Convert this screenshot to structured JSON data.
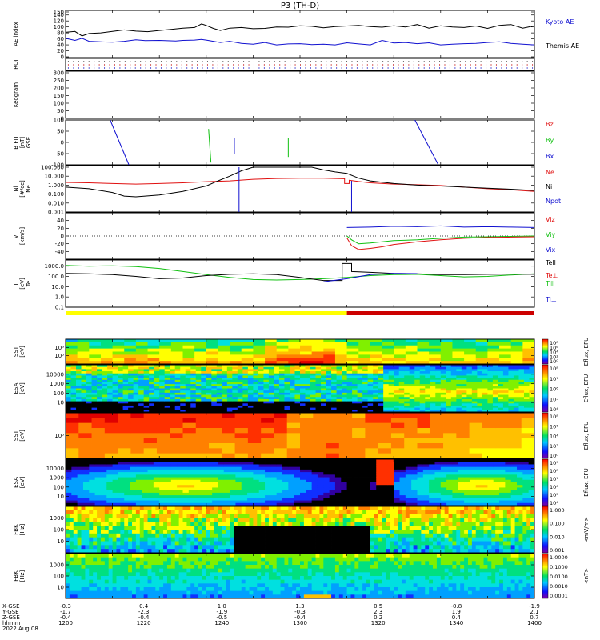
{
  "title": "P3 (TH-D)",
  "colors": {
    "black": "#000000",
    "red": "#e01010",
    "green": "#10c010",
    "blue": "#1010d0",
    "yellow_bar": "#ffff00",
    "mode_bar_red": "#cc0000"
  },
  "chart_data": [
    {
      "name": "ae-index",
      "type": "line",
      "ylabel": "AE index",
      "ylim": [
        0,
        150
      ],
      "yticks": [
        "150",
        "140",
        "120",
        "100",
        "80",
        "60",
        "40",
        "20",
        "0"
      ],
      "series": [
        {
          "name": "Kyoto AE",
          "color": "#1010d0",
          "x": [
            1200,
            1204,
            1207,
            1210,
            1215,
            1220,
            1225,
            1230,
            1234,
            1240,
            1247,
            1250,
            1255,
            1258,
            1260,
            1263,
            1266,
            1270,
            1275,
            1280,
            1285,
            1290,
            1295,
            1300,
            1305,
            1310,
            1315,
            1320,
            1325,
            1330,
            1335,
            1340,
            1345,
            1350,
            1355,
            1360,
            1365,
            1370,
            1375,
            1380,
            1385,
            1390,
            1395,
            1400
          ],
          "values": [
            62,
            55,
            62,
            52,
            50,
            49,
            52,
            57,
            54,
            55,
            53,
            55,
            56,
            58,
            56,
            52,
            48,
            52,
            45,
            42,
            48,
            40,
            43,
            44,
            41,
            42,
            40,
            47,
            43,
            40,
            55,
            46,
            48,
            44,
            47,
            40,
            42,
            44,
            45,
            48,
            50,
            45,
            42,
            40
          ]
        },
        {
          "name": "Themis AE",
          "color": "#000000",
          "x": [
            1200,
            1204,
            1207,
            1210,
            1215,
            1220,
            1225,
            1230,
            1235,
            1240,
            1245,
            1250,
            1255,
            1258,
            1260,
            1263,
            1266,
            1270,
            1275,
            1280,
            1285,
            1290,
            1295,
            1300,
            1305,
            1310,
            1315,
            1320,
            1325,
            1330,
            1335,
            1340,
            1345,
            1350,
            1355,
            1360,
            1365,
            1370,
            1375,
            1380,
            1385,
            1390,
            1395,
            1400
          ],
          "values": [
            82,
            85,
            70,
            78,
            80,
            85,
            90,
            86,
            84,
            88,
            92,
            96,
            98,
            110,
            105,
            95,
            88,
            96,
            98,
            94,
            95,
            100,
            99,
            104,
            102,
            97,
            101,
            103,
            105,
            101,
            99,
            104,
            100,
            108,
            96,
            104,
            100,
            98,
            103,
            95,
            105,
            108,
            96,
            104
          ]
        }
      ],
      "legend": [
        "Kyoto AE",
        "Themis AE"
      ]
    },
    {
      "name": "roi-flags",
      "type": "scatter",
      "ylabel": "ROI",
      "description_labels": []
    },
    {
      "name": "keogram",
      "type": "line",
      "ylabel": "Keogram",
      "ylim": [
        0,
        300
      ],
      "yticks": [
        "300",
        "250",
        "200",
        "150",
        "100",
        "50",
        "0"
      ]
    },
    {
      "name": "b-fit",
      "type": "line",
      "ylabel": "B FIT",
      "ylabel2": "[nT]",
      "ylabel3": "GSE",
      "ylim": [
        -100,
        100
      ],
      "yticks": [
        "100",
        "50",
        "0",
        "-50",
        "-100"
      ],
      "legend": [
        "Bz",
        "By",
        "Bx"
      ],
      "series": [
        {
          "name": "Bx",
          "color": "#1010d0",
          "segments": [
            [
              [
                1219,
                100
              ],
              [
                1227,
                -100
              ]
            ],
            [
              [
                1272,
                20
              ],
              [
                1272,
                -50
              ]
            ],
            [
              [
                1349,
                100
              ],
              [
                1359,
                -100
              ]
            ]
          ]
        },
        {
          "name": "By",
          "color": "#10c010",
          "segments": [
            [
              [
                1261,
                60
              ],
              [
                1262,
                -90
              ]
            ],
            [
              [
                1295,
                20
              ],
              [
                1295,
                -65
              ]
            ]
          ]
        }
      ]
    },
    {
      "name": "density",
      "type": "line",
      "ylabel": "Ni",
      "ylabel2": "[#/cc]",
      "ylabel3": "Ne",
      "yscale": "log",
      "ylim": [
        0.001,
        100
      ],
      "yticks": [
        "100.000",
        "10.000",
        "1.000",
        "0.100",
        "0.010",
        "0.001"
      ],
      "legend": [
        "Ne",
        "Ni",
        "Npot"
      ],
      "series": [
        {
          "name": "Ne",
          "color": "#e01010",
          "x": [
            1200,
            1210,
            1220,
            1230,
            1240,
            1250,
            1260,
            1270,
            1280,
            1290,
            1300,
            1310,
            1315,
            1319,
            1319,
            1321,
            1321,
            1325,
            1330,
            1340,
            1350,
            1360,
            1370,
            1380,
            1390,
            1400
          ],
          "values": [
            2.0,
            1.8,
            1.5,
            1.3,
            1.5,
            1.8,
            2.4,
            3.0,
            4.5,
            5.5,
            6.0,
            5.8,
            5.5,
            5.2,
            1.5,
            1.5,
            3.5,
            2.5,
            1.8,
            1.3,
            1.1,
            0.9,
            0.6,
            0.4,
            0.3,
            0.2
          ]
        },
        {
          "name": "Ni",
          "color": "#000000",
          "x": [
            1200,
            1210,
            1220,
            1225,
            1230,
            1240,
            1250,
            1260,
            1265,
            1270,
            1275,
            1280,
            1285,
            1300,
            1305,
            1310,
            1315,
            1320,
            1325,
            1330,
            1340,
            1350,
            1360,
            1370,
            1380,
            1390,
            1400
          ],
          "values": [
            0.6,
            0.4,
            0.15,
            0.06,
            0.05,
            0.08,
            0.2,
            0.8,
            3,
            10,
            40,
            100,
            100,
            100,
            100,
            50,
            30,
            20,
            6,
            3,
            1.5,
            1.0,
            0.8,
            0.6,
            0.45,
            0.35,
            0.25
          ]
        },
        {
          "name": "Npot",
          "color": "#1010d0",
          "segments": [
            [
              [
                1274,
                100
              ],
              [
                1274,
                0.001
              ]
            ],
            [
              [
                1322,
                3
              ],
              [
                1322,
                0.001
              ]
            ]
          ]
        }
      ]
    },
    {
      "name": "ion-velocity",
      "type": "line",
      "ylabel": "Vi",
      "ylabel2": "[km/s]",
      "ylim": [
        -60,
        60
      ],
      "yticks": [
        "40",
        "20",
        "0",
        "-20",
        "-40"
      ],
      "legend": [
        "Viz",
        "Viy",
        "Vix"
      ],
      "series": [
        {
          "name": "Vix",
          "color": "#1010d0",
          "x": [
            1320,
            1330,
            1340,
            1350,
            1360,
            1370,
            1380,
            1390,
            1400
          ],
          "values": [
            22,
            23,
            25,
            24,
            26,
            23,
            24,
            23,
            22
          ]
        },
        {
          "name": "Viy",
          "color": "#10c010",
          "x": [
            1320,
            1322,
            1325,
            1330,
            1340,
            1350,
            1360,
            1370,
            1380,
            1390,
            1400
          ],
          "values": [
            0,
            -10,
            -20,
            -18,
            -12,
            -10,
            -6,
            -3,
            -2,
            -1,
            0
          ]
        },
        {
          "name": "Viz",
          "color": "#e01010",
          "x": [
            1320,
            1322,
            1325,
            1330,
            1335,
            1340,
            1350,
            1360,
            1370,
            1380,
            1390,
            1400
          ],
          "values": [
            -5,
            -25,
            -35,
            -32,
            -28,
            -22,
            -15,
            -10,
            -6,
            -4,
            -3,
            -2
          ]
        }
      ]
    },
    {
      "name": "temperature",
      "type": "line",
      "ylabel": "Ti",
      "ylabel2": "[eV]",
      "ylabel3": "Te",
      "yscale": "log",
      "ylim": [
        0.1,
        4000
      ],
      "yticks": [
        "1000.0",
        "100.0",
        "10.0",
        "1.0",
        "0.1"
      ],
      "legend": [
        "Tell",
        "Te⊥",
        "Till",
        "Ti⊥"
      ],
      "series": [
        {
          "name": "Till",
          "color": "#10c010",
          "x": [
            1200,
            1210,
            1220,
            1230,
            1240,
            1250,
            1260,
            1270,
            1280,
            1290,
            1300,
            1310,
            1320,
            1330,
            1340,
            1350,
            1360,
            1370,
            1380,
            1390,
            1400
          ],
          "values": [
            1200,
            1000,
            1100,
            900,
            600,
            300,
            150,
            80,
            50,
            45,
            50,
            60,
            80,
            120,
            150,
            160,
            120,
            90,
            100,
            140,
            180
          ]
        },
        {
          "name": "Tell",
          "color": "#000000",
          "x": [
            1200,
            1210,
            1220,
            1230,
            1240,
            1250,
            1260,
            1270,
            1280,
            1290,
            1300,
            1310,
            1315,
            1318,
            1318,
            1322,
            1322,
            1330,
            1340,
            1350,
            1360,
            1370,
            1380,
            1390,
            1400
          ],
          "values": [
            200,
            180,
            150,
            100,
            60,
            70,
            120,
            160,
            180,
            150,
            80,
            40,
            40,
            40,
            1800,
            1800,
            300,
            250,
            200,
            180,
            150,
            150,
            160,
            170,
            160
          ]
        },
        {
          "name": "Ti⊥",
          "color": "#1010d0",
          "x": [
            1310,
            1320,
            1330,
            1340,
            1350
          ],
          "values": [
            30,
            60,
            150,
            200,
            190
          ]
        }
      ]
    },
    {
      "name": "sst-ion-efflux",
      "type": "heatmap",
      "ylabel": "SST",
      "ylabel2": "[eV]",
      "yticks": [
        "10⁶",
        "10⁵"
      ],
      "colorbar_label": "Eflux, EFU",
      "colorbar_ticks": [
        "10⁸",
        "10⁶",
        "10⁴",
        "10²",
        "10⁰"
      ]
    },
    {
      "name": "esa-ion-efflux",
      "type": "heatmap",
      "ylabel": "ESA",
      "ylabel2": "[eV]",
      "yticks": [
        "10000",
        "1000",
        "100",
        "10"
      ],
      "colorbar_label": "Eflux, EFU",
      "colorbar_ticks": [
        "10⁸",
        "10⁷",
        "10⁶",
        "10⁵",
        "10⁴"
      ]
    },
    {
      "name": "sst-electron-efflux",
      "type": "heatmap",
      "ylabel": "SST",
      "ylabel2": "[eV]",
      "yticks": [
        "10⁵"
      ],
      "colorbar_label": "Eflux, EFU",
      "colorbar_ticks": [
        "10⁸",
        "10⁶",
        "10⁴",
        "10²",
        "10⁰"
      ]
    },
    {
      "name": "esa-electron-efflux",
      "type": "heatmap",
      "ylabel": "ESA",
      "ylabel2": "[eV]",
      "yticks": [
        "10000",
        "1000",
        "100",
        "10"
      ],
      "colorbar_label": "Eflux, EFU",
      "colorbar_ticks": [
        "10⁹",
        "10⁸",
        "10⁷",
        "10⁶",
        "10⁵",
        "10⁴"
      ]
    },
    {
      "name": "fbk-electric",
      "type": "heatmap",
      "ylabel": "FBK",
      "ylabel2": "[Hz]",
      "yticks": [
        "1000",
        "100",
        "10"
      ],
      "colorbar_label": "<mV/m>",
      "colorbar_ticks": [
        "1.000",
        "0.100",
        "0.010",
        "0.001"
      ]
    },
    {
      "name": "fbk-magnetic",
      "type": "heatmap",
      "ylabel": "FBK",
      "ylabel2": "[Hz]",
      "yticks": [
        "1000",
        "100",
        "10"
      ],
      "colorbar_label": "<nT>",
      "colorbar_ticks": [
        "1.0000",
        "0.1000",
        "0.0100",
        "0.0010",
        "0.0001"
      ]
    }
  ],
  "footer": {
    "row_labels": [
      "X-GSE",
      "Y-GSE",
      "Z-GSE",
      "hhmm",
      "2022 Aug 08"
    ],
    "columns": [
      {
        "x": "-0.3",
        "y": "-1.7",
        "z": "-0.4",
        "t": "1200"
      },
      {
        "x": "0.4",
        "y": "-2.3",
        "z": "-0.4",
        "t": "1220"
      },
      {
        "x": "1.0",
        "y": "-1.9",
        "z": "-0.5",
        "t": "1240"
      },
      {
        "x": "1.3",
        "y": "-0.3",
        "z": "-0.4",
        "t": "1300"
      },
      {
        "x": "0.5",
        "y": "2.3",
        "z": "0.2",
        "t": "1320"
      },
      {
        "x": "-0.8",
        "y": "1.9",
        "z": "0.4",
        "t": "1340"
      },
      {
        "x": "-1.9",
        "y": "2.1",
        "z": "0.7",
        "t": "1400"
      }
    ]
  }
}
